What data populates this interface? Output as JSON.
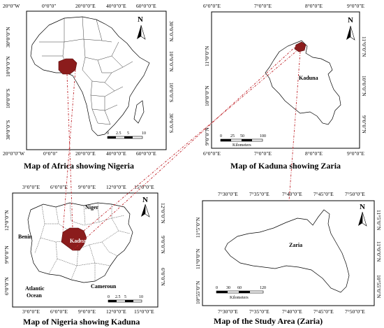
{
  "panels": {
    "africa": {
      "title": "Map of Africa showing Nigeria",
      "top_ticks": [
        "20°0\"W",
        "0°0\"0\"",
        "20°0\"0\"E",
        "40°0\"0\"E",
        "60°0\"0\"E"
      ],
      "bottom_ticks": [
        "20°0\"0\"W",
        "0°0\"0\"",
        "20°0\"0\"E",
        "40°0\"0\"E",
        "60°0\"0\"E"
      ],
      "left_ticks": [
        "30°0\"0\"N",
        "10°0\"0\"N",
        "10°0\"0\"S",
        "30°0\"0\"S"
      ],
      "right_ticks": [
        "30°0\"0\"N",
        "10°0\"0\"N",
        "10°0\"0\"S",
        "30°0\"0\"S"
      ],
      "scale": [
        "0",
        "2.5",
        "5",
        "10"
      ]
    },
    "kaduna": {
      "title": "Map of Kaduna showing Zaria",
      "top_ticks": [
        "6°0\"0\"E",
        "7°0\"0\"E",
        "8°0\"0\"E",
        "9°0\"0\"E"
      ],
      "bottom_ticks": [
        "6°0\"0\"E",
        "7°0\"0\"E",
        "8°0\"0\"E",
        "9°0\"0\"E"
      ],
      "left_ticks": [
        "11°0\"0\"N",
        "10°0\"0\"N",
        "9°0\"0\"N"
      ],
      "right_ticks": [
        "11°0\"0\"N",
        "10°0\"0\"N",
        "9°0\"0\"N"
      ],
      "region_label": "Kaduna",
      "scale": [
        "0",
        "25",
        "50",
        "100"
      ],
      "scale_unit": "Kilometers"
    },
    "nigeria": {
      "title": "Map of Nigeria showing Kaduna",
      "top_ticks": [
        "3°0\"0\"E",
        "6°0\"0\"E",
        "9°0\"0\"E",
        "12°0\"0\"E",
        "15°0\"0\"E"
      ],
      "bottom_ticks": [
        "3°0\"0\"E",
        "6°0\"0\"E",
        "9°0\"0\"E",
        "12°0\"0\"E",
        "15°0\"0\"E"
      ],
      "left_ticks": [
        "12°0\"0\"N",
        "9°0\"0\"N",
        "6°0\"0\"N"
      ],
      "right_ticks": [
        "12°0\"0\"N",
        "9°0\"0\"N",
        "6°0\"0\"N"
      ],
      "labels": {
        "niger": "Niger",
        "benin": "Benin",
        "atlantic1": "Atlantic",
        "atlantic2": "Ocean",
        "cameroun": "Cameroun",
        "kaduna": "Kaduna"
      },
      "scale": [
        "0",
        "2.5",
        "5",
        "10"
      ]
    },
    "zaria": {
      "title": "Map of the Study Area (Zaria)",
      "top_ticks": [
        "7°30\"0\"E",
        "7°35\"0\"E",
        "7°40\"0\"E",
        "7°45\"0\"E",
        "7°50\"0\"E"
      ],
      "bottom_ticks": [
        "7°30\"0\"E",
        "7°35\"0\"E",
        "7°40\"0\"E",
        "7°45\"0\"E",
        "7°50\"0\"E"
      ],
      "left_ticks": [
        "11°5\"0\"N",
        "11°0\"0\"N",
        "10°55\"0\"N"
      ],
      "right_ticks": [
        "11°5\"0\"N",
        "11°0\"0\"N",
        "10°55\"0\"N"
      ],
      "region_label": "Zaria",
      "scale": [
        "0",
        "30",
        "60",
        "120"
      ],
      "scale_unit": "Kilometers"
    }
  },
  "north_label": "N",
  "colors": {
    "highlight": "#8b1c1c",
    "connector": "#c0272d",
    "outline": "#000000"
  }
}
